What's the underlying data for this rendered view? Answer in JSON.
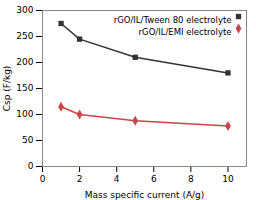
{
  "chart_data": {
    "type": "line",
    "xlabel": "Mass specific current (A/g)",
    "ylabel": "Csp (F/kg)",
    "x": [
      1,
      2,
      5,
      10
    ],
    "series": [
      {
        "name": "rGO/IL/Tween 80 electrolyte",
        "color": "#333333",
        "marker": "square",
        "values": [
          275,
          245,
          210,
          180
        ]
      },
      {
        "name": "rGO/IL/EMI electrolyte",
        "color": "#cc4444",
        "marker": "diamond",
        "values": [
          115,
          100,
          88,
          78
        ]
      }
    ],
    "xlim": [
      0,
      11
    ],
    "ylim": [
      0,
      300
    ],
    "xticks": [
      0,
      2,
      4,
      6,
      8,
      10
    ],
    "yticks": [
      0,
      50,
      100,
      150,
      200,
      250,
      300
    ],
    "grid": false,
    "legend": "upper right"
  }
}
